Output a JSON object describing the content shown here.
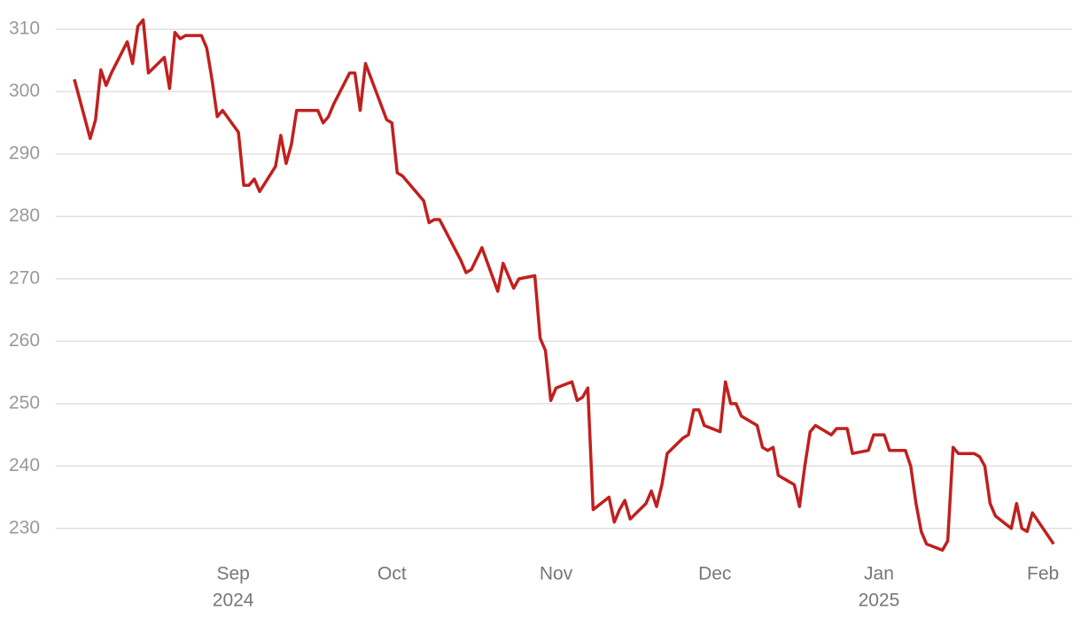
{
  "chart_data": {
    "type": "line",
    "x": [
      -30,
      -27,
      -26,
      -25,
      -24,
      -23,
      -20,
      -19,
      -18,
      -17,
      -16,
      -13,
      -12,
      -11,
      -10,
      -9,
      -6,
      -5,
      -4,
      -3,
      -2,
      1,
      2,
      3,
      4,
      5,
      8,
      9,
      10,
      11,
      12,
      16,
      17,
      18,
      19,
      22,
      23,
      24,
      25,
      29,
      30,
      31,
      32,
      36,
      37,
      38,
      39,
      43,
      44,
      45,
      47,
      50,
      51,
      53,
      54,
      57,
      58,
      59,
      60,
      61,
      64,
      65,
      66,
      67,
      68,
      71,
      72,
      73,
      74,
      75,
      78,
      79,
      80,
      81,
      82,
      85,
      86,
      87,
      88,
      89,
      92,
      93,
      94,
      95,
      96,
      99,
      100,
      101,
      102,
      103,
      106,
      107,
      108,
      109,
      110,
      113,
      114,
      116,
      117,
      120,
      121,
      123,
      124,
      127,
      128,
      129,
      130,
      131,
      134,
      135,
      136,
      137,
      140,
      141,
      142,
      143,
      144,
      147,
      148,
      149,
      150,
      151,
      155
    ],
    "series": [
      {
        "color": "#c0201e",
        "values": [
          302,
          292.5,
          295.5,
          303.5,
          301,
          303,
          308,
          304.5,
          310.5,
          311.5,
          303,
          305.5,
          300.5,
          309.5,
          308.5,
          309,
          309,
          307,
          302,
          296,
          297,
          293.5,
          285,
          285,
          286,
          284,
          288,
          293,
          288.5,
          291.5,
          297,
          297,
          295,
          296,
          298,
          303,
          303,
          297,
          304.5,
          295.5,
          295,
          287,
          286.5,
          282.5,
          279,
          279.5,
          279.5,
          273,
          271,
          271.5,
          275,
          268,
          272.5,
          268.5,
          270,
          270.5,
          260.5,
          258.5,
          250.5,
          252.5,
          253.5,
          250.5,
          251,
          252.5,
          233,
          235,
          231,
          233,
          234.5,
          231.5,
          234,
          236,
          233.5,
          237,
          242,
          244.5,
          245,
          249,
          249,
          246.5,
          245.5,
          253.5,
          250,
          250,
          248,
          246.5,
          243,
          242.5,
          243,
          238.5,
          237,
          233.5,
          240,
          245.5,
          246.5,
          245,
          246,
          246,
          242,
          242.5,
          245,
          245,
          242.5,
          242.5,
          240,
          234,
          229.5,
          227.5,
          226.5,
          228,
          243,
          242,
          242,
          241.5,
          240,
          234,
          232,
          230,
          234,
          230,
          229.5,
          232.5,
          227.5
        ]
      }
    ],
    "xlim": [
      -33.5,
      158.5
    ],
    "xticks": [
      {
        "value": 0,
        "label": [
          "Sep",
          "2024"
        ]
      },
      {
        "value": 30,
        "label": [
          "Oct"
        ]
      },
      {
        "value": 61,
        "label": [
          "Nov"
        ]
      },
      {
        "value": 91,
        "label": [
          "Dec"
        ]
      },
      {
        "value": 122,
        "label": [
          "Jan",
          "2025"
        ]
      },
      {
        "value": 153,
        "label": [
          "Feb"
        ]
      }
    ],
    "ylim": [
      225,
      312
    ],
    "yticks": [
      230,
      240,
      250,
      260,
      270,
      280,
      290,
      300,
      310
    ],
    "grid": true
  }
}
